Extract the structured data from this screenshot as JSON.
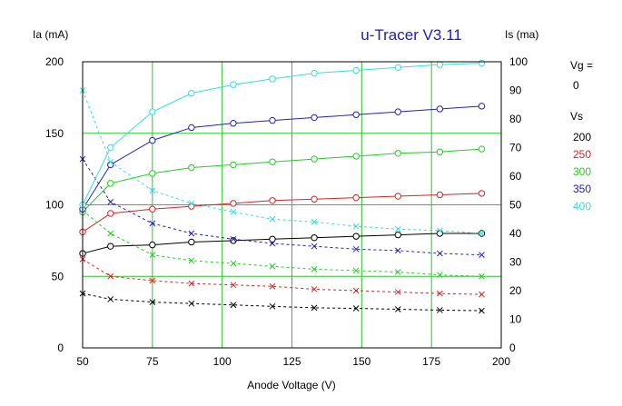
{
  "chart_data": {
    "type": "line",
    "title": "u-Tracer V3.11",
    "xlabel": "Anode Voltage (V)",
    "ylabel_left": "Ia (mA)",
    "ylabel_right": "Is (ma)",
    "xlim": [
      50,
      200
    ],
    "ylim_left": [
      0,
      200
    ],
    "ylim_right": [
      0,
      100
    ],
    "x_ticks": [
      50,
      75,
      100,
      125,
      150,
      175,
      200
    ],
    "y_left_ticks": [
      0,
      50,
      100,
      150,
      200
    ],
    "y_right_ticks": [
      0,
      10,
      20,
      30,
      40,
      50,
      60,
      70,
      80,
      90,
      100
    ],
    "grid": true,
    "legend": {
      "vg_label": "Vg =",
      "vg_value": "0",
      "vs_label": "Vs",
      "entries": [
        {
          "label": "200",
          "color": "#000000"
        },
        {
          "label": "250",
          "color": "#e02020"
        },
        {
          "label": "300",
          "color": "#20d020"
        },
        {
          "label": "350",
          "color": "#2020c8"
        },
        {
          "label": "400",
          "color": "#30e0e0"
        }
      ]
    },
    "x": [
      50,
      60,
      75,
      89,
      104,
      118,
      133,
      148,
      163,
      178,
      193
    ],
    "series": [
      {
        "name": "200",
        "color": "#000000",
        "ia": [
          66,
          71,
          72,
          74,
          75,
          76,
          77,
          78,
          79,
          80,
          80
        ],
        "is": [
          19,
          17,
          16,
          15.5,
          15,
          14.5,
          14,
          13.8,
          13.5,
          13.2,
          13
        ]
      },
      {
        "name": "250",
        "color": "#e02020",
        "ia": [
          81,
          94,
          97,
          99,
          101,
          103,
          104,
          105,
          106,
          107,
          108
        ],
        "is": [
          31,
          25,
          23.5,
          22.5,
          22,
          21.5,
          20.5,
          20,
          19.5,
          19,
          18.7
        ]
      },
      {
        "name": "300",
        "color": "#20d020",
        "ia": [
          95,
          115,
          122,
          126,
          128,
          130,
          132,
          134,
          136,
          137,
          139
        ],
        "is": [
          48,
          40,
          32.5,
          30.5,
          29.5,
          28.5,
          27.5,
          27,
          26.5,
          25.5,
          25
        ]
      },
      {
        "name": "350",
        "color": "#2020c8",
        "ia": [
          97,
          128,
          145,
          154,
          157,
          159,
          161,
          163,
          165,
          167,
          169
        ],
        "is": [
          66,
          51,
          43.5,
          40,
          38,
          36.5,
          35.5,
          34.5,
          34,
          33,
          32.5
        ]
      },
      {
        "name": "400",
        "color": "#30e0e0",
        "ia": [
          100,
          140,
          165,
          178,
          184,
          188,
          192,
          194,
          196,
          198,
          199
        ],
        "is": [
          90,
          65,
          55,
          50.5,
          47.5,
          45,
          44,
          42.5,
          41.5,
          41,
          40
        ]
      }
    ]
  }
}
